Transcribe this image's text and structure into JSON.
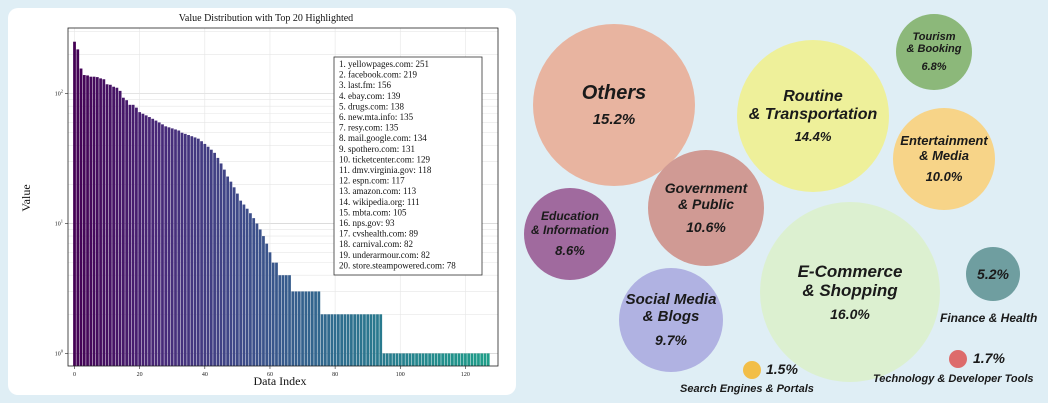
{
  "chart_data": [
    {
      "type": "bar",
      "title": "Value Distribution with Top 20 Highlighted",
      "xlabel": "Data Index",
      "ylabel": "Value",
      "yscale": "log",
      "ylim": [
        0.8,
        320
      ],
      "xlim": [
        -2,
        130
      ],
      "x_ticks": [
        "0",
        "20",
        "40",
        "60",
        "80",
        "100",
        "120"
      ],
      "y_ticks": [
        "10^0",
        "10^1",
        "10^2"
      ],
      "grid": true,
      "legend_box_placement": "top-right",
      "top20": [
        "1. yellowpages.com: 251",
        "2. facebook.com: 219",
        "3. last.fm: 156",
        "4. ebay.com: 139",
        "5. drugs.com: 138",
        "6. new.mta.info: 135",
        "7. resy.com: 135",
        "8. mail.google.com: 134",
        "9. spothero.com: 131",
        "10. ticketcenter.com: 129",
        "11. dmv.virginia.gov: 118",
        "12. espn.com: 117",
        "13. amazon.com: 113",
        "14. wikipedia.org: 111",
        "15. mbta.com: 105",
        "16. nps.gov: 93",
        "17. cvshealth.com: 89",
        "18. carnival.com: 82",
        "19. underarmour.com: 82",
        "20. store.steampowered.com: 78"
      ],
      "values": [
        251,
        219,
        156,
        139,
        138,
        135,
        135,
        134,
        131,
        129,
        118,
        117,
        113,
        111,
        105,
        93,
        89,
        82,
        82,
        78,
        72,
        70,
        68,
        66,
        64,
        62,
        60,
        58,
        56,
        55,
        54,
        53,
        52,
        50,
        49,
        48,
        47,
        46,
        45,
        43,
        41,
        39,
        37,
        35,
        32,
        29,
        26,
        23,
        21,
        19,
        17,
        15,
        14,
        13,
        12,
        11,
        10,
        9,
        8,
        7,
        6,
        5,
        5,
        4,
        4,
        4,
        4,
        3,
        3,
        3,
        3,
        3,
        3,
        3,
        3,
        3,
        2,
        2,
        2,
        2,
        2,
        2,
        2,
        2,
        2,
        2,
        2,
        2,
        2,
        2,
        2,
        2,
        2,
        2,
        2,
        1,
        1,
        1,
        1,
        1,
        1,
        1,
        1,
        1,
        1,
        1,
        1,
        1,
        1,
        1,
        1,
        1,
        1,
        1,
        1,
        1,
        1,
        1,
        1,
        1,
        1,
        1,
        1,
        1,
        1,
        1,
        1,
        1
      ]
    },
    {
      "type": "bubble",
      "categories": [
        {
          "label": "Others",
          "pct": "15.2%",
          "value": 15.2,
          "color": "#e8b4a0"
        },
        {
          "label": "Routine & Transportation",
          "pct": "14.4%",
          "value": 14.4,
          "color": "#eef09a"
        },
        {
          "label": "Tourism & Booking",
          "pct": "6.8%",
          "value": 6.8,
          "color": "#8cb87a"
        },
        {
          "label": "Entertainment & Media",
          "pct": "10.0%",
          "value": 10.0,
          "color": "#f7d488"
        },
        {
          "label": "Government & Public",
          "pct": "10.6%",
          "value": 10.6,
          "color": "#d09a94"
        },
        {
          "label": "Education & Information",
          "pct": "8.6%",
          "value": 8.6,
          "color": "#a06a9e"
        },
        {
          "label": "E-Commerce & Shopping",
          "pct": "16.0%",
          "value": 16.0,
          "color": "#dcf0d0"
        },
        {
          "label": "Finance & Health",
          "pct": "5.2%",
          "value": 5.2,
          "color": "#6f9ea0"
        },
        {
          "label": "Social Media & Blogs",
          "pct": "9.7%",
          "value": 9.7,
          "color": "#b0b2e2"
        },
        {
          "label": "Search Engines & Portals",
          "pct": "1.5%",
          "value": 1.5,
          "color": "#f2be48"
        },
        {
          "label": "Technology & Developer Tools",
          "pct": "1.7%",
          "value": 1.7,
          "color": "#dd6b6b"
        }
      ]
    }
  ]
}
